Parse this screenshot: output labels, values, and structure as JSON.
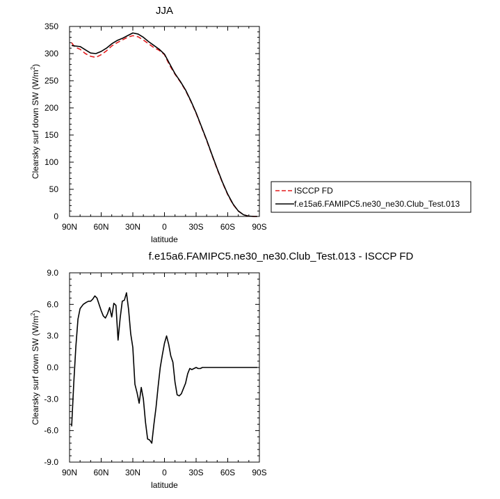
{
  "chart_data": [
    {
      "type": "line",
      "title": "JJA",
      "xlabel": "latitude",
      "ylabel": "Clearsky surf down SW (W/m",
      "ylabel_sup": "2",
      "ylabel_close": ")",
      "xlim": [
        90,
        -90
      ],
      "ylim": [
        0,
        350
      ],
      "x_ticks": [
        90,
        60,
        30,
        0,
        -30,
        -60,
        -90
      ],
      "x_tick_labels": [
        "90N",
        "60N",
        "30N",
        "0",
        "30S",
        "60S",
        "90S"
      ],
      "y_ticks": [
        0,
        50,
        100,
        150,
        200,
        250,
        300,
        350
      ],
      "y_tick_labels": [
        "0",
        "50",
        "100",
        "150",
        "200",
        "250",
        "300",
        "350"
      ],
      "legend": {
        "placement": "right"
      },
      "series": [
        {
          "name": "ISCCP FD",
          "color": "#e41a1c",
          "dash": "dashed",
          "x": [
            88,
            85,
            80,
            75,
            70,
            65,
            60,
            55,
            50,
            45,
            40,
            35,
            30,
            25,
            20,
            15,
            10,
            5,
            0,
            -5,
            -10,
            -15,
            -20,
            -25,
            -30,
            -35,
            -40,
            -45,
            -50,
            -55,
            -60,
            -65,
            -70,
            -75,
            -80,
            -85,
            -88
          ],
          "y": [
            320,
            312,
            308,
            300,
            295,
            293,
            298,
            305,
            314,
            320,
            325,
            330,
            333,
            331,
            325,
            318,
            311,
            306,
            298,
            278,
            262,
            248,
            232,
            212,
            190,
            165,
            140,
            113,
            87,
            62,
            40,
            22,
            10,
            3,
            0.5,
            0,
            0
          ]
        },
        {
          "name": "f.e15a6.FAMIPC5.ne30_ne30.Club_Test.013",
          "color": "#000000",
          "dash": "solid",
          "x": [
            88,
            85,
            80,
            75,
            70,
            65,
            60,
            55,
            50,
            45,
            40,
            35,
            30,
            25,
            20,
            15,
            10,
            5,
            0,
            -5,
            -10,
            -15,
            -20,
            -25,
            -30,
            -35,
            -40,
            -45,
            -50,
            -55,
            -60,
            -65,
            -70,
            -75,
            -80,
            -85,
            -88
          ],
          "y": [
            315,
            314,
            313,
            307,
            301,
            300,
            304,
            310,
            318,
            324,
            328,
            333,
            338,
            336,
            330,
            322,
            315,
            308,
            299,
            281,
            263,
            249,
            233,
            213,
            191,
            166,
            141,
            114,
            88,
            63,
            41,
            23,
            10,
            3,
            0.5,
            0,
            0
          ]
        }
      ]
    },
    {
      "type": "line",
      "title": "f.e15a6.FAMIPC5.ne30_ne30.Club_Test.013 - ISCCP FD",
      "xlabel": "latitude",
      "ylabel": "Clearsky surf down SW (W/m",
      "ylabel_sup": "2",
      "ylabel_close": ")",
      "xlim": [
        90,
        -90
      ],
      "ylim": [
        -9,
        9
      ],
      "x_ticks": [
        90,
        60,
        30,
        0,
        -30,
        -60,
        -90
      ],
      "x_tick_labels": [
        "90N",
        "60N",
        "30N",
        "0",
        "30S",
        "60S",
        "90S"
      ],
      "y_ticks": [
        -9,
        -6,
        -3,
        0,
        3,
        6,
        9
      ],
      "y_tick_labels": [
        "-9.0",
        "-6.0",
        "-3.0",
        "0.0",
        "3.0",
        "6.0",
        "9.0"
      ],
      "series": [
        {
          "color": "#000000",
          "dash": "solid",
          "x": [
            88,
            86,
            84,
            82,
            80,
            77,
            74,
            72,
            70,
            68,
            66,
            64,
            62,
            60,
            58,
            56,
            54,
            52,
            50,
            48,
            46,
            44,
            42,
            40,
            38,
            36,
            34,
            32,
            30,
            28,
            26,
            24,
            22,
            20,
            18,
            16,
            14,
            12,
            10,
            8,
            6,
            4,
            2,
            0,
            -2,
            -4,
            -6,
            -8,
            -10,
            -12,
            -14,
            -16,
            -18,
            -20,
            -22,
            -24,
            -26,
            -28,
            -30,
            -32,
            -34,
            -36,
            -38,
            -40,
            -42,
            -44,
            -46,
            -48,
            -50,
            -52,
            -54,
            -56,
            -60,
            -65,
            -70,
            -75,
            -80,
            -85,
            -88
          ],
          "y": [
            -5.6,
            -1.5,
            2.0,
            4.6,
            5.6,
            6.0,
            6.2,
            6.3,
            6.3,
            6.5,
            6.8,
            6.6,
            6.0,
            5.4,
            4.9,
            4.7,
            5.1,
            5.7,
            4.8,
            6.1,
            5.9,
            2.6,
            4.7,
            6.3,
            6.4,
            7.1,
            5.5,
            3.2,
            1.9,
            -1.6,
            -2.4,
            -3.4,
            -1.9,
            -3.0,
            -5.2,
            -6.8,
            -6.9,
            -7.2,
            -5.4,
            -3.8,
            -1.8,
            0.0,
            1.2,
            2.3,
            3.0,
            2.2,
            1.1,
            0.5,
            -1.4,
            -2.6,
            -2.7,
            -2.5,
            -2.0,
            -1.5,
            -0.6,
            -0.1,
            -0.2,
            -0.1,
            0.0,
            -0.1,
            -0.1,
            0.0,
            0.0,
            0.0,
            0.0,
            0.0,
            0.0,
            0.0,
            0.0,
            0.0,
            0.0,
            0.0,
            0.0,
            0.0,
            0.0,
            0.0,
            0.0,
            0.0,
            0.0
          ]
        }
      ]
    }
  ]
}
